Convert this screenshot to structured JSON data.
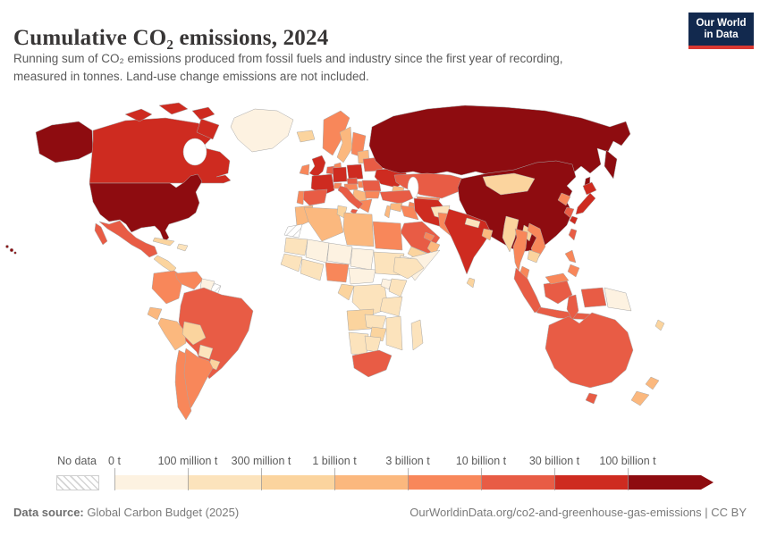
{
  "header": {
    "title": "Cumulative CO₂ emissions, 2024",
    "subtitle_lines": [
      "Running sum of CO₂ emissions produced from fossil fuels and industry since the first year of recording,",
      "measured in tonnes. Land-use change emissions are not included."
    ]
  },
  "logo": {
    "line1": "Our World",
    "line2": "in Data",
    "bg": "#12294e",
    "accent": "#d93832"
  },
  "footer": {
    "source_label": "Data source:",
    "source_value": " Global Carbon Budget (2025)",
    "url_license": "OurWorldinData.org/co2-and-greenhouse-gas-emissions | CC BY"
  },
  "chart_data": {
    "type": "choropleth",
    "title": "Cumulative CO₂ emissions, 2024",
    "unit": "tonnes",
    "no_data_label": "No data",
    "bin_edges": [
      "0 t",
      "100 million t",
      "300 million t",
      "1 billion t",
      "3 billion t",
      "10 billion t",
      "30 billion t",
      "100 billion t"
    ],
    "bin_order": [
      "b1",
      "b2",
      "b3",
      "b4",
      "b5",
      "b6",
      "b7",
      "b8"
    ],
    "bin_colors": {
      "b1": "#FDF2E1",
      "b2": "#FCE3BC",
      "b3": "#FBD49E",
      "b4": "#FBB87E",
      "b5": "#F8875A",
      "b6": "#E85C45",
      "b7": "#CE2B20",
      "b8": "#8E0C10"
    },
    "countries": {
      "greenland": "b1",
      "canada": "b7",
      "usa": "b8",
      "mexico": "b6",
      "central-america": "b3",
      "cuba": "b3",
      "hispaniola": "b2",
      "colombia": "b5",
      "venezuela": "b5",
      "guyana-suriname": "b1",
      "french-guiana": "no-data",
      "ecuador": "b4",
      "peru": "b4",
      "brazil": "b6",
      "bolivia": "b3",
      "paraguay": "b2",
      "uruguay": "b3",
      "argentina": "b5",
      "chile": "b5",
      "iceland": "b3",
      "norway": "b5",
      "sweden": "b4",
      "finland": "b5",
      "baltics": "b4",
      "denmark": "b5",
      "uk": "b7",
      "ireland": "b5",
      "benelux": "b6",
      "germany": "b7",
      "france": "b7",
      "spain": "b6",
      "portugal": "b5",
      "switzerland": "b5",
      "italy": "b6",
      "czechia": "b6",
      "austria": "b5",
      "poland": "b7",
      "belarus": "b6",
      "ukraine": "b7",
      "hungary": "b5",
      "romania": "b6",
      "balkans": "b4",
      "bulgaria": "b5",
      "greece": "b5",
      "russia": "b8",
      "kazakhstan": "b6",
      "caucasus": "b4",
      "uzbekistan": "b5",
      "turkmenistan": "b5",
      "turkey": "b6",
      "syria": "b4",
      "levant": "b4",
      "iraq": "b5",
      "iran": "b7",
      "afghanistan": "b2",
      "pakistan": "b5",
      "saudi-arabia": "b6",
      "yemen": "b3",
      "oman": "b4",
      "gulf-states": "b5",
      "morocco": "b4",
      "western-sahara": "no-data",
      "algeria": "b4",
      "tunisia": "b3",
      "libya": "b4",
      "egypt": "b5",
      "mauritania": "b2",
      "mali": "b1",
      "niger": "b1",
      "chad": "b1",
      "sudan": "b2",
      "eritrea": "b1",
      "ethiopia": "b2",
      "somalia": "b1",
      "senegal-guinea": "b2",
      "west-africa": "b2",
      "nigeria": "b5",
      "cameroon-car": "b1",
      "congo-gabon": "b3",
      "drc": "b2",
      "uganda": "b1",
      "kenya": "b2",
      "tanzania": "b2",
      "angola": "b3",
      "zambia": "b2",
      "mozambique": "b2",
      "zimbabwe": "b3",
      "namibia": "b2",
      "botswana": "b2",
      "south-africa": "b6",
      "madagascar": "b2",
      "india": "b7",
      "nepal": "b2",
      "bangladesh": "b4",
      "sri-lanka": "b3",
      "china": "b8",
      "mongolia": "b3",
      "taiwan": "b6",
      "north-korea": "b5",
      "south-korea": "b6",
      "japan": "b7",
      "myanmar": "b3",
      "thailand": "b5",
      "laos": "b3",
      "vietnam": "b5",
      "cambodia": "b3",
      "malaysia": "b5",
      "indonesia": "b6",
      "png": "b1",
      "philippines": "b5",
      "australia": "b6",
      "new-zealand": "b4",
      "new-caledonia": "b3"
    }
  }
}
